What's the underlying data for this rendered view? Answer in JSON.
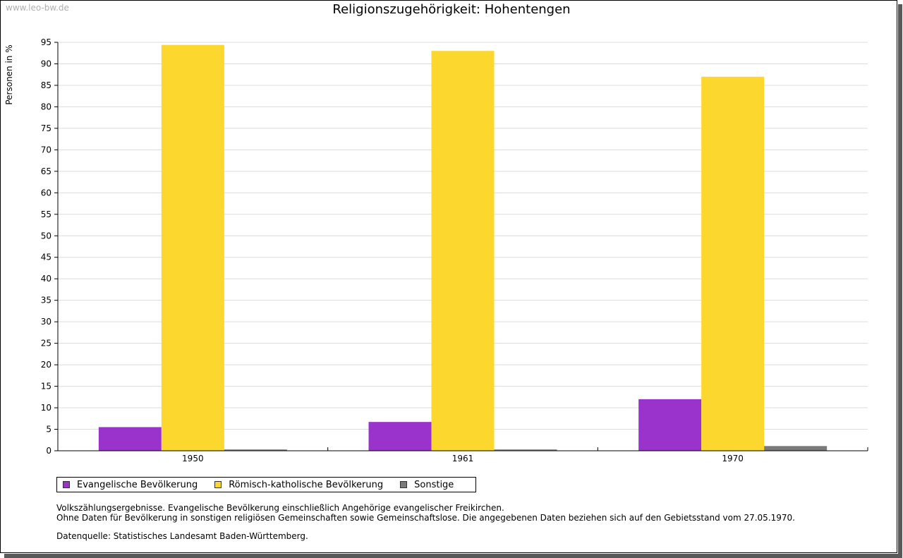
{
  "watermark": "www.leo-bw.de",
  "chart_data": {
    "type": "bar",
    "title": "Religionszugehörigkeit: Hohentengen",
    "xlabel": "",
    "ylabel": "Personen in %",
    "ylim": [
      0,
      95
    ],
    "ytick_step": 5,
    "grid": true,
    "categories": [
      "1950",
      "1961",
      "1970"
    ],
    "series": [
      {
        "name": "Evangelische Bevölkerung",
        "color": "#9933cc",
        "values": [
          5.5,
          6.7,
          12.0
        ]
      },
      {
        "name": "Römisch-katholische Bevölkerung",
        "color": "#fcd72e",
        "values": [
          94.4,
          93.0,
          87.0
        ]
      },
      {
        "name": "Sonstige",
        "color": "#7a7a7a",
        "values": [
          0.3,
          0.3,
          1.1
        ]
      }
    ],
    "legend_position": "bottom-left"
  },
  "notes": {
    "line1": "Volkszählungsergebnisse. Evangelische Bevölkerung einschließlich Angehörige evangelischer Freikirchen.",
    "line2": "Ohne Daten für Bevölkerung in sonstigen religiösen Gemeinschaften sowie Gemeinschaftslose. Die angegebenen Daten beziehen sich auf den Gebietsstand vom 27.05.1970.",
    "source": "Datenquelle: Statistisches Landesamt Baden-Württemberg."
  }
}
